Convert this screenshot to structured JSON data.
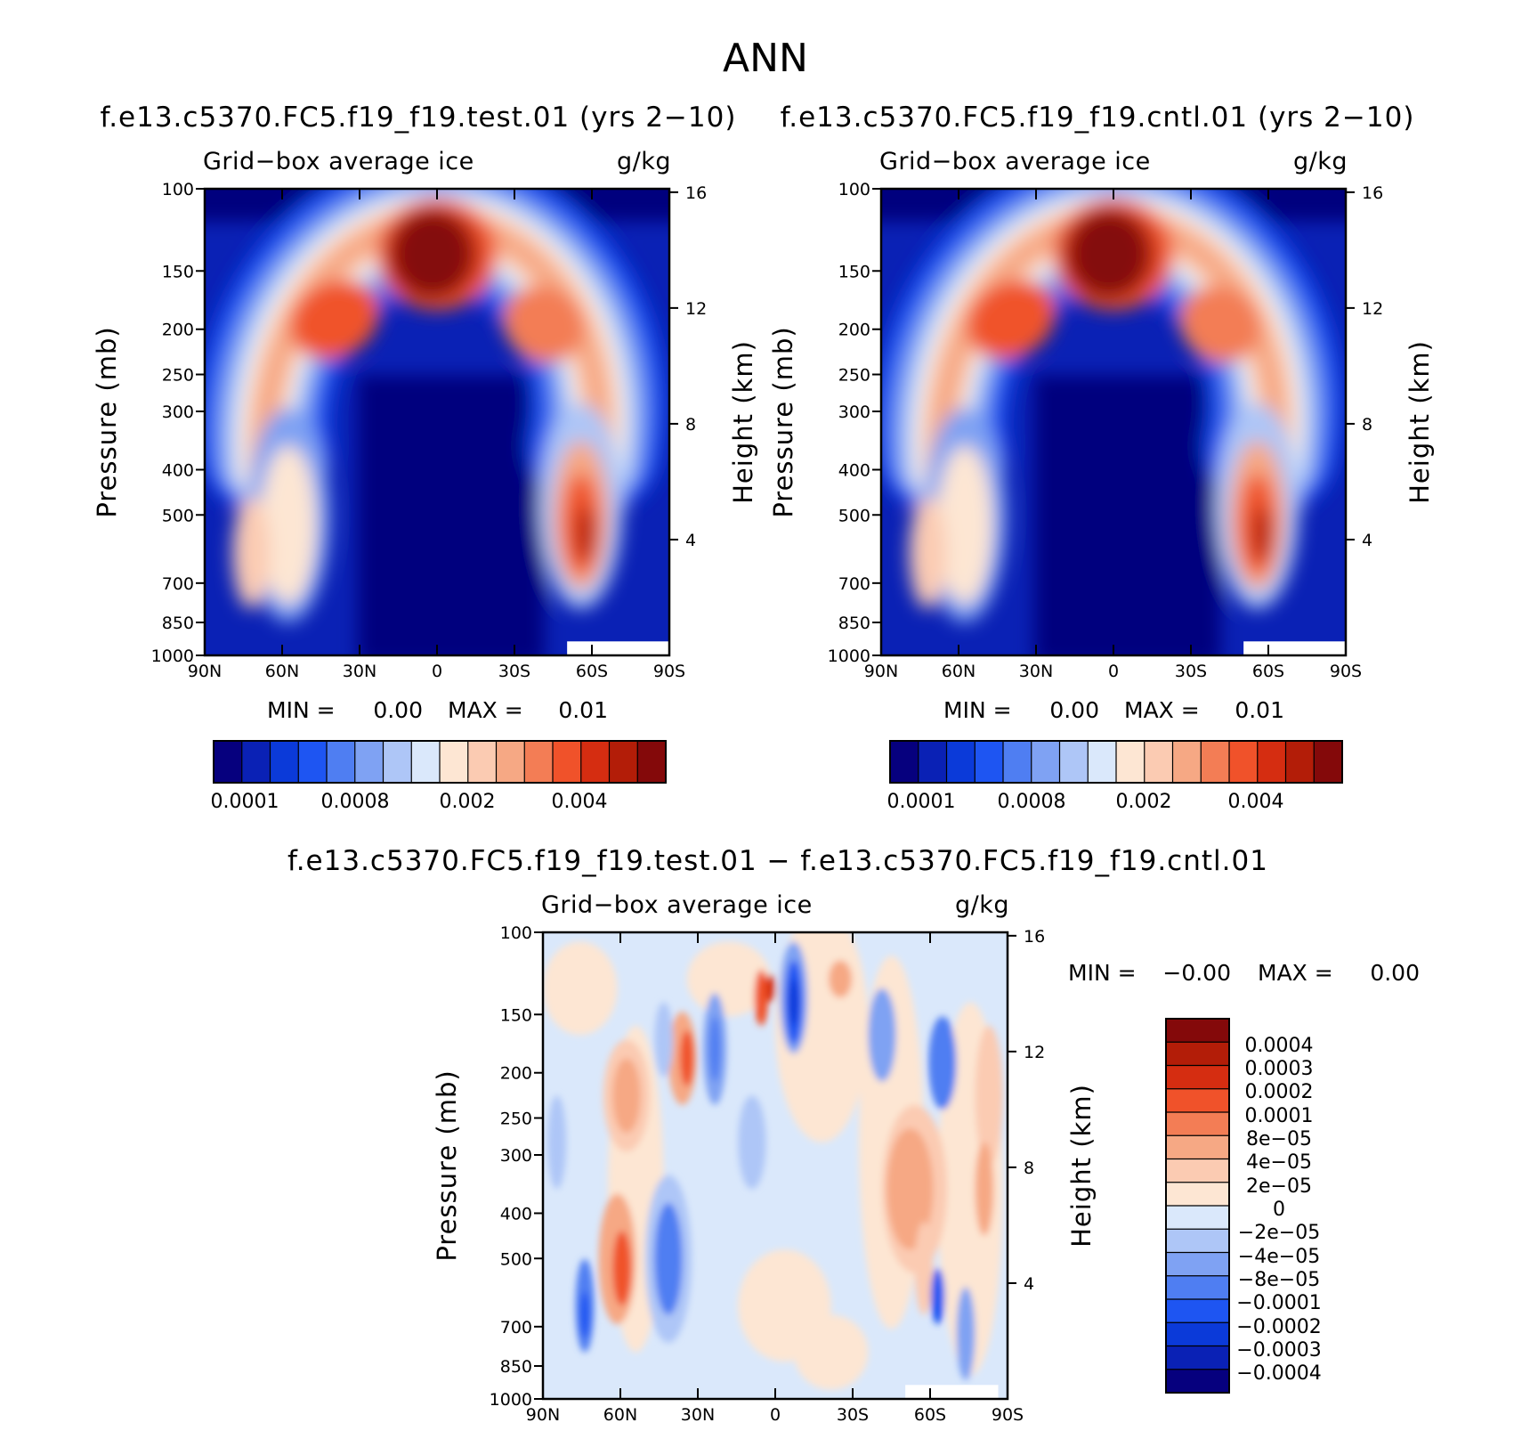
{
  "figure_title": "ANN",
  "palette": {
    "abs": [
      "#06007e",
      "#0a21b5",
      "#0b3ad9",
      "#1e55f2",
      "#4f7ef2",
      "#7fa2f3",
      "#aec6f7",
      "#dae8fb",
      "#fde6d3",
      "#fbcbb2",
      "#f6a884",
      "#f37d55",
      "#f0522a",
      "#d52d11",
      "#b31d08",
      "#84090a"
    ],
    "diff": [
      "#84090a",
      "#b31d08",
      "#d52d11",
      "#f0522a",
      "#f37d55",
      "#f6a884",
      "#fbcbb2",
      "#fde6d3",
      "#dae8fb",
      "#aec6f7",
      "#7fa2f3",
      "#4f7ef2",
      "#1e55f2",
      "#0b3ad9",
      "#0a21b5",
      "#06007e"
    ]
  },
  "chart_data": [
    {
      "type": "contour",
      "title": "f.e13.c5370.FC5.f19_f19.test.01 (yrs 2−10)",
      "left_string": "Grid−box average ice",
      "right_string": "g/kg",
      "xlabel": "",
      "ylabel": "Pressure (mb)",
      "ylabel_right": "Height (km)",
      "x_ticks": [
        "90N",
        "60N",
        "30N",
        "0",
        "30S",
        "60S",
        "90S"
      ],
      "x_range": [
        90,
        -90
      ],
      "y_ticks": [
        "100",
        "150",
        "200",
        "250",
        "300",
        "400",
        "500",
        "700",
        "850",
        "1000"
      ],
      "y_range_mb": [
        100,
        1000
      ],
      "y2_ticks": [
        "16",
        "12",
        "8",
        "4"
      ],
      "min_label": "MIN =",
      "min_value": "0.00",
      "max_label": "MAX =",
      "max_value": "0.01",
      "colorbar_labels": [
        "0.0001",
        "0.0008",
        "0.002",
        "0.004"
      ]
    },
    {
      "type": "contour",
      "title": "f.e13.c5370.FC5.f19_f19.cntl.01 (yrs 2−10)",
      "left_string": "Grid−box average ice",
      "right_string": "g/kg",
      "xlabel": "",
      "ylabel": "Pressure (mb)",
      "ylabel_right": "Height (km)",
      "x_ticks": [
        "90N",
        "60N",
        "30N",
        "0",
        "30S",
        "60S",
        "90S"
      ],
      "x_range": [
        90,
        -90
      ],
      "y_ticks": [
        "100",
        "150",
        "200",
        "250",
        "300",
        "400",
        "500",
        "700",
        "850",
        "1000"
      ],
      "y_range_mb": [
        100,
        1000
      ],
      "y2_ticks": [
        "16",
        "12",
        "8",
        "4"
      ],
      "min_label": "MIN =",
      "min_value": "0.00",
      "max_label": "MAX =",
      "max_value": "0.01",
      "colorbar_labels": [
        "0.0001",
        "0.0008",
        "0.002",
        "0.004"
      ]
    },
    {
      "type": "contour",
      "title": "f.e13.c5370.FC5.f19_f19.test.01 − f.e13.c5370.FC5.f19_f19.cntl.01",
      "left_string": "Grid−box average ice",
      "right_string": "g/kg",
      "xlabel": "",
      "ylabel": "Pressure (mb)",
      "ylabel_right": "Height (km)",
      "x_ticks": [
        "90N",
        "60N",
        "30N",
        "0",
        "30S",
        "60S",
        "90S"
      ],
      "x_range": [
        90,
        -90
      ],
      "y_ticks": [
        "100",
        "150",
        "200",
        "250",
        "300",
        "400",
        "500",
        "700",
        "850",
        "1000"
      ],
      "y_range_mb": [
        100,
        1000
      ],
      "y2_ticks": [
        "16",
        "12",
        "8",
        "4"
      ],
      "min_label": "MIN =",
      "min_value": "−0.00",
      "max_label": "MAX =",
      "max_value": "0.00",
      "colorbar_labels": [
        "0.0004",
        "0.0003",
        "0.0002",
        "0.0001",
        "8e−05",
        "4e−05",
        "2e−05",
        "0",
        "−2e−05",
        "−4e−05",
        "−8e−05",
        "−0.0001",
        "−0.0002",
        "−0.0003",
        "−0.0004"
      ]
    }
  ]
}
